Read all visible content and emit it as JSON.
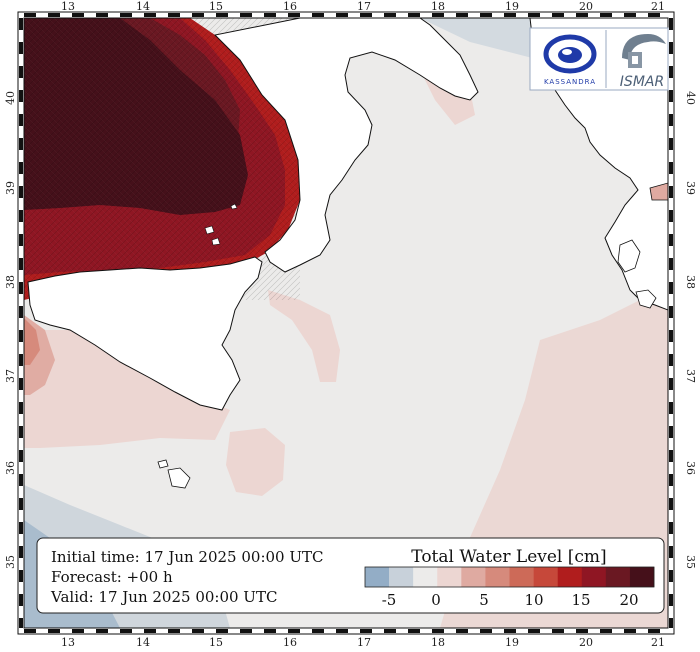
{
  "map": {
    "lon_ticks": [
      "13",
      "14",
      "15",
      "16",
      "17",
      "18",
      "19",
      "20",
      "21"
    ],
    "lat_ticks": [
      "40",
      "39",
      "38",
      "37",
      "36",
      "35"
    ],
    "colors": {
      "land": "#ffffff",
      "sea_neutral": "#ecebea",
      "negative_light": "#c9d2da",
      "negative_mid": "#a9bccd"
    }
  },
  "info_box": {
    "initial_time": "Initial time: 17 Jun 2025 00:00 UTC",
    "forecast": "Forecast: +00 h",
    "valid": "Valid: 17 Jun 2025 00:00 UTC"
  },
  "legend": {
    "title": "Total Water Level [cm]",
    "tick_labels": [
      "-5",
      "0",
      "5",
      "10",
      "15",
      "20"
    ],
    "colors": [
      "#93adc6",
      "#c8d1da",
      "#ecebea",
      "#ecd6d2",
      "#dfaaa1",
      "#d68a7c",
      "#cd6a58",
      "#c6483a",
      "#b01d1d",
      "#8f1623",
      "#6a1822",
      "#45101a"
    ]
  },
  "logos": {
    "left_text": "KASSANDRA",
    "right_text": "ISMAR"
  }
}
